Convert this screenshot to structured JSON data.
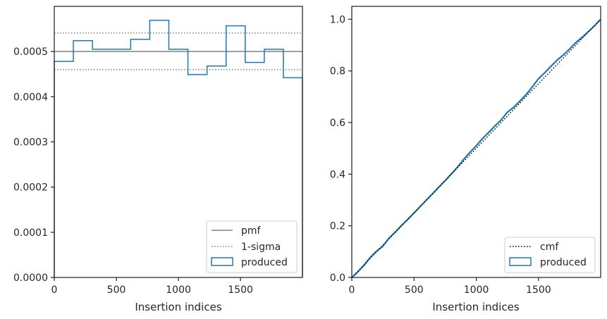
{
  "chart_data": [
    {
      "type": "histogram",
      "xlabel": "Insertion indices",
      "ylabel": "",
      "xlim": [
        0,
        1999
      ],
      "ylim": [
        0,
        0.0006
      ],
      "xticks": [
        0,
        500,
        1000,
        1500
      ],
      "xtick_labels": [
        "0",
        "500",
        "1000",
        "1500"
      ],
      "yticks": [
        0,
        0.0001,
        0.0002,
        0.0003,
        0.0004,
        0.0005
      ],
      "ytick_labels": [
        "0.0000",
        "0.0001",
        "0.0002",
        "0.0003",
        "0.0004",
        "0.0005"
      ],
      "bin_edges": [
        0,
        153.8,
        307.6,
        461.4,
        615.2,
        769,
        922.8,
        1076.6,
        1230.4,
        1384.2,
        1538,
        1691.8,
        1845.6,
        1999
      ],
      "series": [
        {
          "name": "produced",
          "style": "step",
          "color": "#1f77b4",
          "values": [
            0.000478,
            0.000524,
            0.000505,
            0.000505,
            0.000527,
            0.000569,
            0.000505,
            0.000449,
            0.000468,
            0.000557,
            0.000476,
            0.000505,
            0.000442
          ]
        },
        {
          "name": "pmf",
          "style": "hline",
          "color": "#808080",
          "value": 0.0005
        },
        {
          "name": "1-sigma",
          "style": "hline-dotted",
          "color": "#808080",
          "values": [
            0.000541,
            0.00046
          ]
        }
      ],
      "legend": {
        "position": "lower-right",
        "entries": [
          "pmf",
          "1-sigma",
          "produced"
        ]
      }
    },
    {
      "type": "line",
      "xlabel": "Insertion indices",
      "ylabel": "",
      "xlim": [
        0,
        1999
      ],
      "ylim": [
        0,
        1.05
      ],
      "xticks": [
        0,
        500,
        1000,
        1500
      ],
      "xtick_labels": [
        "0",
        "500",
        "1000",
        "1500"
      ],
      "yticks": [
        0,
        0.2,
        0.4,
        0.6,
        0.8,
        1.0
      ],
      "ytick_labels": [
        "0.0",
        "0.2",
        "0.4",
        "0.6",
        "0.8",
        "1.0"
      ],
      "series": [
        {
          "name": "cmf",
          "style": "dotted",
          "color": "#000000",
          "x": [
            0,
            1999
          ],
          "y": [
            0,
            1.0
          ]
        },
        {
          "name": "produced",
          "style": "step",
          "color": "#1f77b4",
          "x": [
            0,
            50,
            100,
            150,
            200,
            250,
            300,
            350,
            400,
            450,
            500,
            550,
            600,
            650,
            700,
            750,
            800,
            850,
            900,
            950,
            1000,
            1050,
            1100,
            1150,
            1200,
            1250,
            1300,
            1350,
            1400,
            1450,
            1500,
            1550,
            1600,
            1650,
            1700,
            1750,
            1800,
            1850,
            1900,
            1950,
            1999
          ],
          "y": [
            0,
            0.022,
            0.048,
            0.079,
            0.102,
            0.121,
            0.153,
            0.176,
            0.202,
            0.225,
            0.25,
            0.275,
            0.3,
            0.325,
            0.35,
            0.375,
            0.401,
            0.428,
            0.458,
            0.485,
            0.51,
            0.538,
            0.562,
            0.587,
            0.61,
            0.64,
            0.659,
            0.683,
            0.708,
            0.738,
            0.77,
            0.793,
            0.818,
            0.842,
            0.862,
            0.885,
            0.91,
            0.93,
            0.952,
            0.975,
            1.0
          ]
        }
      ],
      "legend": {
        "position": "lower-right",
        "entries": [
          "cmf",
          "produced"
        ]
      }
    }
  ]
}
